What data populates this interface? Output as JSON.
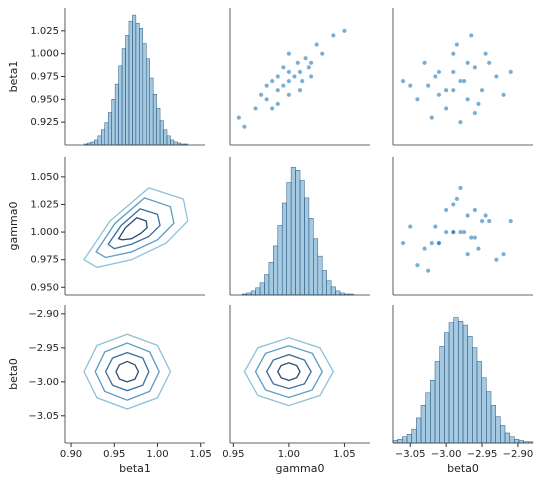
{
  "chart_data": [
    {
      "type": "histogram",
      "ylabel": "beta1",
      "xlim": [
        0.893,
        1.055
      ],
      "ylim": [
        0.9,
        1.05
      ],
      "yticks": [
        0.925,
        {
          "value": 0.95,
          "label": "0.950"
        },
        0.975,
        {
          "value": 1,
          "label": "1.000"
        },
        1.025
      ],
      "bins": [
        0.915,
        0.919,
        0.923,
        0.927,
        0.931,
        0.935,
        0.939,
        0.943,
        0.947,
        0.951,
        0.955,
        0.959,
        0.963,
        0.967,
        0.971,
        0.975,
        0.979,
        0.983,
        0.987,
        0.991,
        0.995,
        0.999,
        1.003,
        1.007,
        1.011,
        1.015,
        1.019,
        1.023,
        1.027,
        1.031,
        1.035
      ],
      "counts": [
        1,
        2,
        3,
        5,
        9,
        15,
        22,
        32,
        45,
        60,
        78,
        95,
        108,
        122,
        128,
        120,
        115,
        100,
        85,
        66,
        50,
        36,
        24,
        15,
        9,
        5,
        3,
        2,
        1,
        1
      ],
      "count_lim": [
        0,
        135
      ],
      "color": "#1f77b4"
    },
    {
      "type": "scatter",
      "xlim": [
        0.947,
        1.073
      ],
      "ylim": [
        0.9,
        1.05
      ],
      "color": "#1f77b4",
      "x": [
        1.0,
        0.99,
        1.01,
        0.98,
        1.02,
        1.0,
        0.995,
        1.005,
        0.985,
        1.015,
        1.03,
        0.97,
        0.99,
        1.01,
        1.0,
        1.02,
        0.98,
        1.04,
        0.96,
        1.025,
        0.995,
        1.008,
        0.975,
        1.012,
        0.99,
        1.05,
        0.955,
        1.0,
        0.985,
        1.018
      ],
      "y": [
        0.97,
        0.96,
        0.98,
        0.95,
        0.99,
        0.98,
        0.965,
        0.975,
        0.94,
        0.995,
        1.0,
        0.94,
        0.975,
        0.96,
        0.955,
        0.975,
        0.965,
        1.02,
        0.92,
        1.01,
        0.985,
        0.99,
        0.955,
        0.97,
        0.945,
        1.025,
        0.93,
        1.0,
        0.97,
        0.985
      ]
    },
    {
      "type": "scatter",
      "xlim": [
        -3.074,
        -2.879
      ],
      "ylim": [
        0.9,
        1.05
      ],
      "color": "#1f77b4",
      "x": [
        -2.98,
        -3.01,
        -2.95,
        -3.03,
        -2.97,
        -2.99,
        -2.93,
        -3.0,
        -2.96,
        -3.05,
        -2.92,
        -2.985,
        -3.02,
        -2.94,
        -2.975,
        -3.04,
        -2.99,
        -2.965,
        -3.015,
        -2.955,
        -2.91,
        -3.06,
        -2.98,
        -2.97,
        -3.0,
        -2.945,
        -3.025,
        -2.99,
        -2.96,
        -3.01
      ],
      "y": [
        0.97,
        0.98,
        0.96,
        0.99,
        0.95,
        1.0,
        0.975,
        0.94,
        0.985,
        0.965,
        0.955,
        1.01,
        0.93,
        0.99,
        0.97,
        0.95,
        0.96,
        1.02,
        0.975,
        0.945,
        0.98,
        0.97,
        0.925,
        0.99,
        0.96,
        1.0,
        0.965,
        0.98,
        0.935,
        0.955
      ]
    },
    {
      "type": "kde",
      "ylabel": "gamma0",
      "xlim": [
        0.893,
        1.055
      ],
      "ylim": [
        0.943,
        1.068
      ],
      "yticks": [
        {
          "value": 0.95,
          "label": "0.950"
        },
        0.975,
        {
          "value": 1,
          "label": "1.000"
        },
        1.025,
        {
          "value": 1.05,
          "label": "1.050"
        }
      ],
      "contours": [
        {
          "color": "#8ec1da",
          "x": [
            1.03,
            0.99,
            0.945,
            0.915,
            0.93,
            0.97,
            1.01,
            1.035
          ],
          "y": [
            1.03,
            1.04,
            1.01,
            0.975,
            0.968,
            0.975,
            0.99,
            1.01
          ]
        },
        {
          "color": "#5b9bc4",
          "x": [
            1.015,
            0.985,
            0.951,
            0.929,
            0.94,
            0.97,
            1.0,
            1.019
          ],
          "y": [
            1.023,
            1.031,
            1.008,
            0.982,
            0.977,
            0.982,
            0.993,
            1.008
          ]
        },
        {
          "color": "#3a6e9e",
          "x": [
            1.0,
            0.98,
            0.958,
            0.943,
            0.95,
            0.97,
            0.99,
            1.003
          ],
          "y": [
            1.016,
            1.021,
            1.006,
            0.989,
            0.985,
            0.989,
            0.996,
            1.006
          ]
        },
        {
          "color": "#2a4a6e",
          "x": [
            0.987,
            0.976,
            0.963,
            0.955,
            0.959,
            0.97,
            0.981,
            0.988
          ],
          "y": [
            1.01,
            1.013,
            1.004,
            0.994,
            0.993,
            0.994,
            0.999,
            1.004
          ]
        }
      ]
    },
    {
      "type": "histogram",
      "xlim": [
        0.947,
        1.073
      ],
      "ylim": [
        0.943,
        1.068
      ],
      "bins": [
        0.95,
        0.954,
        0.958,
        0.962,
        0.966,
        0.97,
        0.974,
        0.978,
        0.982,
        0.986,
        0.99,
        0.994,
        0.998,
        1.002,
        1.006,
        1.01,
        1.014,
        1.018,
        1.022,
        1.026,
        1.03,
        1.034,
        1.038,
        1.042,
        1.046,
        1.05,
        1.054,
        1.058,
        1.062,
        1.066,
        1.07
      ],
      "counts": [
        0,
        0,
        1,
        2,
        4,
        7,
        12,
        20,
        32,
        48,
        68,
        90,
        110,
        125,
        122,
        112,
        95,
        75,
        55,
        38,
        24,
        14,
        8,
        4,
        2,
        1,
        1,
        0,
        0,
        0
      ],
      "count_lim": [
        0,
        135
      ],
      "color": "#1f77b4"
    },
    {
      "type": "scatter",
      "xlim": [
        -3.074,
        -2.879
      ],
      "ylim": [
        0.943,
        1.068
      ],
      "color": "#1f77b4",
      "x": [
        -2.98,
        -3.01,
        -2.95,
        -3.03,
        -2.97,
        -2.99,
        -2.93,
        -3.0,
        -2.96,
        -3.05,
        -2.92,
        -2.985,
        -3.02,
        -2.94,
        -2.975,
        -3.04,
        -2.99,
        -2.965,
        -3.015,
        -2.955,
        -2.91,
        -3.06,
        -2.98,
        -2.97,
        -3.0,
        -2.945,
        -3.025,
        -2.99,
        -2.96,
        -3.01
      ],
      "y": [
        1.0,
        0.99,
        1.01,
        0.985,
        1.015,
        1.0,
        0.975,
        1.02,
        0.995,
        1.005,
        0.98,
        1.03,
        0.99,
        1.01,
        1.0,
        0.97,
        1.025,
        0.995,
        1.005,
        0.985,
        1.01,
        0.99,
        1.04,
        0.98,
        1.0,
        1.015,
        0.965,
        1.0,
        1.02,
        0.99
      ]
    },
    {
      "type": "kde",
      "ylabel": "beta0",
      "xlabel": "beta1",
      "xlim": [
        0.893,
        1.055
      ],
      "ylim": [
        -3.09,
        -2.887
      ],
      "xticks": [
        {
          "value": 0.9,
          "label": "0.90"
        },
        {
          "value": 0.95,
          "label": "0.95"
        },
        {
          "value": 1,
          "label": "1.00"
        },
        {
          "value": 1.05,
          "label": "1.05"
        }
      ],
      "yticks": [
        {
          "value": -2.9,
          "label": "−2.90"
        },
        {
          "value": -2.95,
          "label": "−2.95"
        },
        {
          "value": -3,
          "label": "−3.00"
        },
        {
          "value": -3.05,
          "label": "−3.05"
        }
      ],
      "contours": [
        {
          "color": "#8ec1da",
          "x": [
            1.015,
            1.0,
            0.965,
            0.93,
            0.915,
            0.93,
            0.965,
            1.0
          ],
          "y": [
            -2.985,
            -2.9465,
            -2.93,
            -2.9465,
            -2.985,
            -3.0235,
            -3.04,
            -3.0235
          ]
        },
        {
          "color": "#5b9bc4",
          "x": [
            1.002,
            0.991,
            0.965,
            0.939,
            0.928,
            0.939,
            0.965,
            0.991
          ],
          "y": [
            -2.985,
            -2.956,
            -2.943,
            -2.956,
            -2.985,
            -3.014,
            -3.027,
            -3.014
          ]
        },
        {
          "color": "#3a6e9e",
          "x": [
            0.99,
            0.983,
            0.965,
            0.948,
            0.94,
            0.948,
            0.965,
            0.983
          ],
          "y": [
            -2.985,
            -2.965,
            -2.957,
            -2.965,
            -2.985,
            -3.005,
            -3.013,
            -3.005
          ]
        },
        {
          "color": "#2a4a6e",
          "x": [
            0.978,
            0.974,
            0.965,
            0.956,
            0.952,
            0.956,
            0.965,
            0.974
          ],
          "y": [
            -2.985,
            -2.975,
            -2.97,
            -2.975,
            -2.985,
            -2.996,
            -3.0,
            -2.996
          ]
        }
      ]
    },
    {
      "type": "kde",
      "xlabel": "gamma0",
      "xlim": [
        0.947,
        1.073
      ],
      "ylim": [
        -3.09,
        -2.887
      ],
      "xticks": [
        {
          "value": 0.95,
          "label": "0.95"
        },
        {
          "value": 1,
          "label": "1.00"
        },
        {
          "value": 1.05,
          "label": "1.05"
        }
      ],
      "contours": [
        {
          "color": "#8ec1da",
          "x": [
            1.04,
            1.028,
            1.0,
            0.972,
            0.96,
            0.972,
            1.0,
            1.028
          ],
          "y": [
            -2.985,
            -2.95,
            -2.935,
            -2.95,
            -2.985,
            -3.02,
            -3.035,
            -3.02
          ]
        },
        {
          "color": "#5b9bc4",
          "x": [
            1.03,
            1.021,
            1.0,
            0.979,
            0.97,
            0.979,
            1.0,
            1.021
          ],
          "y": [
            -2.985,
            -2.958,
            -2.947,
            -2.958,
            -2.985,
            -3.012,
            -3.023,
            -3.012
          ]
        },
        {
          "color": "#3a6e9e",
          "x": [
            1.02,
            1.014,
            1.0,
            0.986,
            0.98,
            0.986,
            1.0,
            1.014
          ],
          "y": [
            -2.985,
            -2.968,
            -2.96,
            -2.968,
            -2.985,
            -3.003,
            -3.01,
            -3.003
          ]
        },
        {
          "color": "#2a4a6e",
          "x": [
            1.01,
            1.007,
            1.0,
            0.993,
            0.99,
            0.993,
            1.0,
            1.007
          ],
          "y": [
            -2.985,
            -2.976,
            -2.972,
            -2.976,
            -2.985,
            -2.994,
            -2.998,
            -2.994
          ]
        }
      ]
    },
    {
      "type": "histogram",
      "xlabel": "beta0",
      "xlim": [
        -3.074,
        -2.879
      ],
      "ylim": [
        -3.09,
        -2.887
      ],
      "xticks": [
        {
          "value": -3.05,
          "label": "−3.05"
        },
        {
          "value": -3,
          "label": "−3.00"
        },
        {
          "value": -2.95,
          "label": "−2.95"
        },
        {
          "value": -2.9,
          "label": "−2.90"
        }
      ],
      "bins": [
        -3.074,
        -3.0675,
        -3.061,
        -3.0545,
        -3.048,
        -3.0415,
        -3.035,
        -3.0285,
        -3.022,
        -3.0155,
        -3.009,
        -3.0025,
        -2.996,
        -2.9895,
        -2.983,
        -2.9765,
        -2.97,
        -2.9635,
        -2.957,
        -2.9505,
        -2.944,
        -2.9375,
        -2.931,
        -2.9245,
        -2.918,
        -2.9115,
        -2.905,
        -2.8985,
        -2.892,
        -2.8855,
        -2.879
      ],
      "counts": [
        2,
        3,
        5,
        7,
        11,
        20,
        30,
        40,
        50,
        65,
        77,
        88,
        96,
        100,
        97,
        94,
        85,
        76,
        65,
        52,
        41,
        30,
        21,
        14,
        8,
        5,
        3,
        2,
        1,
        1
      ],
      "count_lim": [
        0,
        110
      ],
      "color": "#1f77b4"
    }
  ]
}
